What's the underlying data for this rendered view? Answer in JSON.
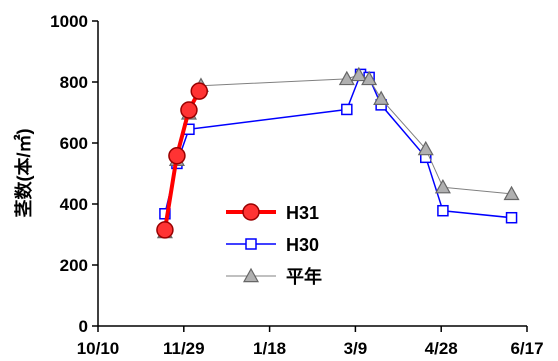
{
  "chart_data": {
    "type": "line",
    "title": "",
    "xlabel": "",
    "ylabel": "茎数(本/㎡)",
    "ylim": [
      0,
      1000
    ],
    "yticks": [
      "0",
      "200",
      "400",
      "600",
      "800",
      "1000"
    ],
    "xticks": [
      "10/10",
      "11/29",
      "1/18",
      "3/9",
      "4/28",
      "6/17"
    ],
    "xtick_days": [
      0,
      50,
      100,
      150,
      200,
      250
    ],
    "grid": false,
    "legend_position": "bottom-center",
    "series": [
      {
        "name": "H31",
        "color": "#ff0000",
        "marker": "circle",
        "x_days": [
          39,
          46,
          53,
          59
        ],
        "values": [
          315,
          558,
          708,
          770
        ]
      },
      {
        "name": "H30",
        "color": "#0000ff",
        "marker": "square",
        "x_days": [
          39,
          46,
          53,
          145,
          153,
          158,
          165,
          191,
          201,
          241
        ],
        "values": [
          368,
          533,
          645,
          710,
          825,
          815,
          725,
          553,
          378,
          355
        ]
      },
      {
        "name": "平年",
        "color": "#808080",
        "marker": "triangle",
        "x_days": [
          39,
          46,
          53,
          60,
          145,
          152,
          158,
          165,
          191,
          201,
          241
        ],
        "values": [
          308,
          545,
          697,
          788,
          810,
          823,
          810,
          745,
          580,
          455,
          433
        ]
      }
    ]
  }
}
